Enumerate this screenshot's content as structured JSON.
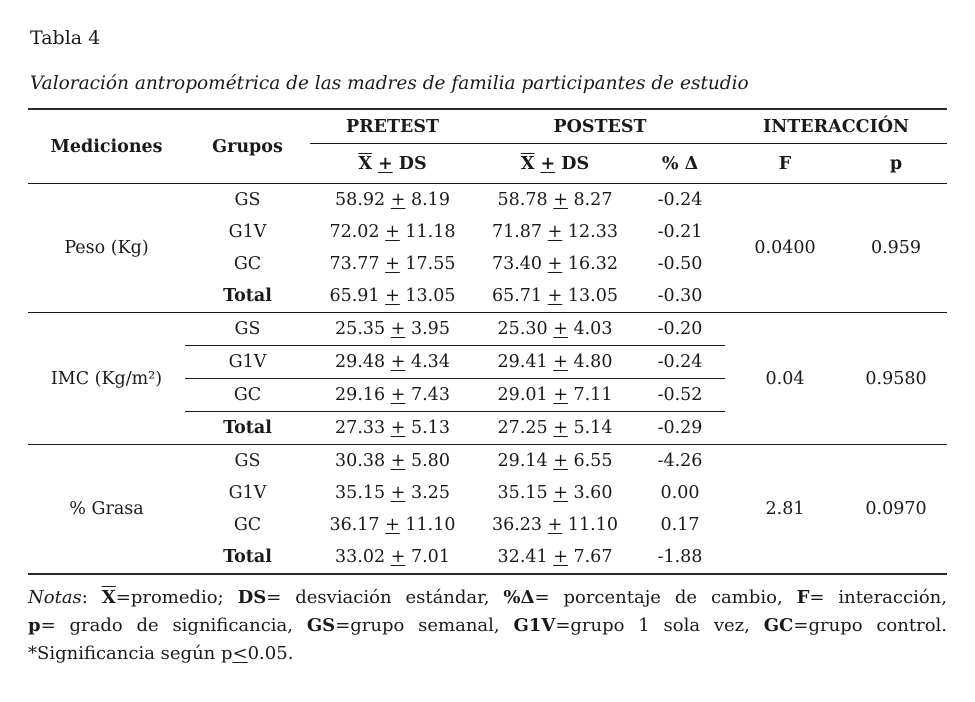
{
  "title": "Tabla 4",
  "subtitle": "Valoración antropométrica de las madres de familia participantes de estudio",
  "table": {
    "plus_sign": "+",
    "col_headers": {
      "mediciones": "Mediciones",
      "grupos": "Grupos",
      "pretest": "PRETEST",
      "postest": "POSTEST",
      "interaccion": "INTERACCIÓN",
      "mean_sd": {
        "x": "X",
        "plus": "+",
        "ds": "DS"
      },
      "delta": "% Δ",
      "f": "F",
      "p": "p"
    },
    "sections": [
      {
        "measurement": "Peso (Kg)",
        "row_separators": false,
        "f": "0.0400",
        "p": "0.959",
        "rows": [
          {
            "group": "GS",
            "group_bold": false,
            "pre_mean": "58.92",
            "pre_sd": "8.19",
            "post_mean": "58.78",
            "post_sd": "8.27",
            "delta": "-0.24"
          },
          {
            "group": "G1V",
            "group_bold": false,
            "pre_mean": "72.02",
            "pre_sd": "11.18",
            "post_mean": "71.87",
            "post_sd": "12.33",
            "delta": "-0.21"
          },
          {
            "group": "GC",
            "group_bold": false,
            "pre_mean": "73.77",
            "pre_sd": "17.55",
            "post_mean": "73.40",
            "post_sd": "16.32",
            "delta": "-0.50"
          },
          {
            "group": "Total",
            "group_bold": true,
            "pre_mean": "65.91",
            "pre_sd": "13.05",
            "post_mean": "65.71",
            "post_sd": "13.05",
            "delta": "-0.30"
          }
        ]
      },
      {
        "measurement": "IMC (Kg/m²)",
        "row_separators": true,
        "f": "0.04",
        "p": "0.9580",
        "rows": [
          {
            "group": "GS",
            "group_bold": false,
            "pre_mean": "25.35",
            "pre_sd": "3.95",
            "post_mean": "25.30",
            "post_sd": "4.03",
            "delta": "-0.20"
          },
          {
            "group": "G1V",
            "group_bold": false,
            "pre_mean": "29.48",
            "pre_sd": "4.34",
            "post_mean": "29.41",
            "post_sd": "4.80",
            "delta": "-0.24"
          },
          {
            "group": "GC",
            "group_bold": false,
            "pre_mean": "29.16",
            "pre_sd": "7.43",
            "post_mean": "29.01",
            "post_sd": "7.11",
            "delta": "-0.52"
          },
          {
            "group": "Total",
            "group_bold": true,
            "pre_mean": "27.33",
            "pre_sd": "5.13",
            "post_mean": "27.25",
            "post_sd": "5.14",
            "delta": "-0.29"
          }
        ]
      },
      {
        "measurement": "% Grasa",
        "row_separators": false,
        "f": "2.81",
        "p": "0.0970",
        "rows": [
          {
            "group": "GS",
            "group_bold": false,
            "pre_mean": "30.38",
            "pre_sd": "5.80",
            "post_mean": "29.14",
            "post_sd": "6.55",
            "delta": "-4.26"
          },
          {
            "group": "G1V",
            "group_bold": false,
            "pre_mean": "35.15",
            "pre_sd": "3.25",
            "post_mean": "35.15",
            "post_sd": "3.60",
            "delta": "0.00"
          },
          {
            "group": "GC",
            "group_bold": false,
            "pre_mean": "36.17",
            "pre_sd": "11.10",
            "post_mean": "36.23",
            "post_sd": "11.10",
            "delta": "0.17"
          },
          {
            "group": "Total",
            "group_bold": true,
            "pre_mean": "33.02",
            "pre_sd": "7.01",
            "post_mean": "32.41",
            "post_sd": "7.67",
            "delta": "-1.88"
          }
        ]
      }
    ]
  },
  "notes": {
    "lines": [
      [
        {
          "t": "Notas",
          "i": true
        },
        {
          "t": ": "
        },
        {
          "t": "X",
          "b": true,
          "ov": true
        },
        {
          "t": "=promedio; "
        },
        {
          "t": "DS",
          "b": true
        },
        {
          "t": "= desviación estándar, "
        },
        {
          "t": "%Δ",
          "b": true
        },
        {
          "t": "= porcentaje de cambio, "
        },
        {
          "t": "F",
          "b": true
        },
        {
          "t": "= interacción,"
        }
      ],
      [
        {
          "t": "p",
          "b": true
        },
        {
          "t": "= grado de significancia, "
        },
        {
          "t": "GS",
          "b": true
        },
        {
          "t": "=grupo semanal, "
        },
        {
          "t": "G1V",
          "b": true
        },
        {
          "t": "=grupo 1 sola vez, "
        },
        {
          "t": "GC",
          "b": true
        },
        {
          "t": "=grupo control."
        }
      ],
      [
        {
          "t": "*Significancia según p"
        },
        {
          "t": "<",
          "u": true
        },
        {
          "t": "0.05."
        }
      ]
    ]
  }
}
